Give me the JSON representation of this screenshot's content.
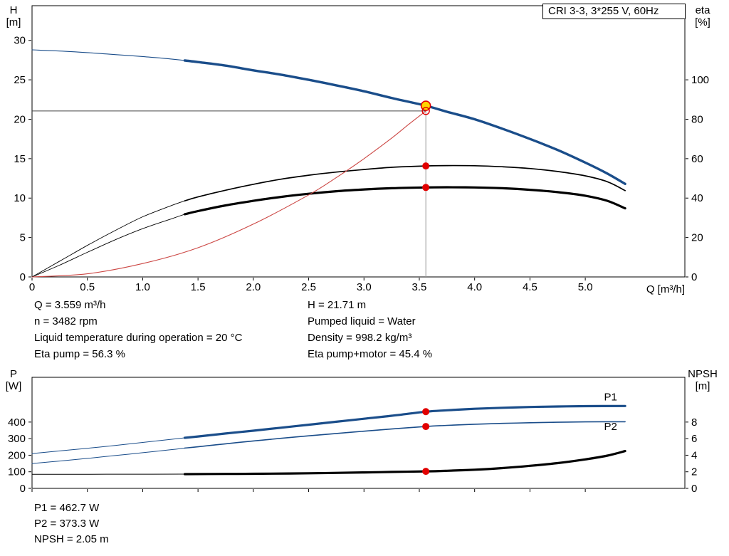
{
  "header_box": {
    "label": "CRI 3-3, 3*255 V, 60Hz"
  },
  "top_chart_titles": {
    "y_left_1": "H",
    "y_left_2": "[m]",
    "y_right_1": "eta",
    "y_right_2": "[%]",
    "x_title": "Q [m³/h]"
  },
  "bottom_chart_titles": {
    "y_left_1": "P",
    "y_left_2": "[W]",
    "y_right_1": "NPSH",
    "y_right_2": "[m]"
  },
  "results_top": {
    "col1": [
      "Q = 3.559 m³/h",
      "n = 3482 rpm",
      "Liquid temperature during operation = 20 °C",
      "Eta pump = 56.3 %"
    ],
    "col2": [
      "H = 21.71 m",
      "Pumped liquid = Water",
      "Density = 998.2 kg/m³",
      "Eta pump+motor = 45.4 %"
    ]
  },
  "results_bottom": [
    "P1 = 462.7 W",
    "P2 = 373.3 W",
    "NPSH = 2.05 m"
  ],
  "colors": {
    "curve_blue": "#1a4d8a",
    "curve_black": "#000000",
    "system_red": "#cc4744",
    "marker_red": "#e10000",
    "duty_yellow": "#ffd500"
  },
  "chart_data": [
    {
      "type": "line",
      "title": "CRI 3-3, 3*255 V, 60Hz",
      "xlabel": "Q [m³/h]",
      "ylabel_left": "H [m]",
      "ylabel_right": "eta [%]",
      "x_range": [
        0,
        5.9
      ],
      "y_left_range": [
        0,
        34.4
      ],
      "y_right_range": [
        0,
        137.6
      ],
      "grid": false,
      "x_ticks": [
        [
          "0",
          0
        ],
        [
          "0.5",
          0.5
        ],
        [
          "1.0",
          1
        ],
        [
          "1.5",
          1.5
        ],
        [
          "2.0",
          2
        ],
        [
          "2.5",
          2.5
        ],
        [
          "3.0",
          3
        ],
        [
          "3.5",
          3.5
        ],
        [
          "4.0",
          4
        ],
        [
          "4.5",
          4.5
        ],
        [
          "5.0",
          5
        ]
      ],
      "y_left_ticks": [
        [
          "0",
          0
        ],
        [
          "5",
          5
        ],
        [
          "10",
          10
        ],
        [
          "15",
          15
        ],
        [
          "20",
          20
        ],
        [
          "25",
          25
        ],
        [
          "30",
          30
        ]
      ],
      "y_right_ticks": [
        [
          "0",
          0
        ],
        [
          "20",
          20
        ],
        [
          "40",
          40
        ],
        [
          "60",
          60
        ],
        [
          "80",
          80
        ],
        [
          "100",
          100
        ]
      ],
      "ref_lines": [
        {
          "id": "head-reference-line",
          "type": "h",
          "v": 21.05,
          "from_q": 0,
          "to_q": 3.559,
          "color": "#444444",
          "w": 1
        },
        {
          "id": "flow-reference-line",
          "type": "v",
          "q": 3.559,
          "from": 0,
          "to": 21.71,
          "color": "#999999",
          "w": 1
        }
      ],
      "series": [
        {
          "id": "hq",
          "name": "H",
          "axis": "left",
          "color": "#1a4d8a",
          "width": 3.4,
          "thin_width": 1.1,
          "thin_until": 1.38,
          "points": [
            [
              0,
              28.8
            ],
            [
              0.25,
              28.65
            ],
            [
              0.5,
              28.45
            ],
            [
              0.75,
              28.2
            ],
            [
              1,
              27.95
            ],
            [
              1.25,
              27.65
            ],
            [
              1.38,
              27.45
            ],
            [
              1.5,
              27.25
            ],
            [
              1.75,
              26.8
            ],
            [
              2,
              26.2
            ],
            [
              2.25,
              25.65
            ],
            [
              2.5,
              25
            ],
            [
              2.75,
              24.3
            ],
            [
              3,
              23.55
            ],
            [
              3.25,
              22.7
            ],
            [
              3.559,
              21.71
            ],
            [
              3.75,
              20.95
            ],
            [
              4,
              20
            ],
            [
              4.25,
              18.8
            ],
            [
              4.5,
              17.5
            ],
            [
              4.75,
              16.1
            ],
            [
              5,
              14.5
            ],
            [
              5.2,
              13.1
            ],
            [
              5.36,
              11.8
            ]
          ]
        },
        {
          "id": "eta-pump",
          "name": "Eta pump",
          "axis": "right",
          "color": "#000000",
          "width": 1.7,
          "thin_width": 0.9,
          "thin_until": 1.38,
          "points": [
            [
              0,
              0
            ],
            [
              0.25,
              8
            ],
            [
              0.5,
              16
            ],
            [
              0.75,
              23.5
            ],
            [
              1,
              30.5
            ],
            [
              1.25,
              36
            ],
            [
              1.38,
              38.6
            ],
            [
              1.5,
              40.6
            ],
            [
              1.75,
              44
            ],
            [
              2,
              47
            ],
            [
              2.25,
              49.6
            ],
            [
              2.5,
              51.6
            ],
            [
              2.75,
              53.2
            ],
            [
              3,
              54.5
            ],
            [
              3.25,
              55.6
            ],
            [
              3.559,
              56.3
            ],
            [
              3.75,
              56.5
            ],
            [
              4,
              56.4
            ],
            [
              4.25,
              55.9
            ],
            [
              4.5,
              55
            ],
            [
              4.75,
              53.5
            ],
            [
              5,
              51.3
            ],
            [
              5.2,
              48.3
            ],
            [
              5.36,
              43.8
            ]
          ]
        },
        {
          "id": "eta-pump-motor",
          "name": "Eta pump+motor",
          "axis": "right",
          "color": "#000000",
          "width": 3.2,
          "thin_width": 0.9,
          "thin_until": 1.38,
          "points": [
            [
              0,
              0
            ],
            [
              0.25,
              6
            ],
            [
              0.5,
              12.5
            ],
            [
              0.75,
              18.8
            ],
            [
              1,
              24.5
            ],
            [
              1.25,
              29.3
            ],
            [
              1.38,
              31.8
            ],
            [
              1.5,
              33.4
            ],
            [
              1.75,
              36.3
            ],
            [
              2,
              38.6
            ],
            [
              2.25,
              40.6
            ],
            [
              2.5,
              42.2
            ],
            [
              2.75,
              43.5
            ],
            [
              3,
              44.4
            ],
            [
              3.25,
              45
            ],
            [
              3.559,
              45.4
            ],
            [
              3.75,
              45.5
            ],
            [
              4,
              45.4
            ],
            [
              4.25,
              45
            ],
            [
              4.5,
              44.2
            ],
            [
              4.75,
              43
            ],
            [
              5,
              41.2
            ],
            [
              5.2,
              38.6
            ],
            [
              5.36,
              34.8
            ]
          ]
        },
        {
          "id": "system-curve",
          "name": "System curve",
          "axis": "left",
          "color": "#cc4744",
          "width": 1.1,
          "points": [
            [
              0,
              0
            ],
            [
              0.5,
              0.4
            ],
            [
              1,
              1.7
            ],
            [
              1.5,
              3.7
            ],
            [
              2,
              6.7
            ],
            [
              2.5,
              10.4
            ],
            [
              2.75,
              12.6
            ],
            [
              3,
              15
            ],
            [
              3.25,
              17.6
            ],
            [
              3.4,
              19.3
            ],
            [
              3.559,
              21.05
            ]
          ]
        }
      ],
      "markers": [
        {
          "id": "duty-point",
          "style": "duty",
          "q": 3.559,
          "v": 21.71,
          "axis": "left",
          "fill": "#ffd500",
          "color": "#e10000",
          "r": 6.5
        },
        {
          "id": "requested-point",
          "style": "ring",
          "q": 3.559,
          "v": 21.05,
          "axis": "left",
          "color": "#e10000",
          "r": 5
        },
        {
          "id": "eta-pump-point",
          "style": "dot",
          "q": 3.559,
          "v": 56.3,
          "axis": "right",
          "color": "#e10000",
          "r": 5
        },
        {
          "id": "eta-pump-motor-point",
          "style": "dot",
          "q": 3.559,
          "v": 45.4,
          "axis": "right",
          "color": "#e10000",
          "r": 5
        }
      ]
    },
    {
      "type": "line",
      "ylabel_left": "P [W]",
      "ylabel_right": "NPSH [m]",
      "x_range": [
        0,
        5.9
      ],
      "y_left_range": [
        0,
        670
      ],
      "y_right_range": [
        0,
        13.4
      ],
      "grid": false,
      "x_ticks": [
        [
          "",
          0
        ],
        [
          "",
          0.5
        ],
        [
          "",
          1
        ],
        [
          "",
          1.5
        ],
        [
          "",
          2
        ],
        [
          "",
          2.5
        ],
        [
          "",
          3
        ],
        [
          "",
          3.5
        ],
        [
          "",
          4
        ],
        [
          "",
          4.5
        ],
        [
          "",
          5
        ]
      ],
      "y_left_ticks": [
        [
          "0",
          0
        ],
        [
          "100",
          100
        ],
        [
          "200",
          200
        ],
        [
          "300",
          300
        ],
        [
          "400",
          400
        ]
      ],
      "y_right_ticks": [
        [
          "0",
          0
        ],
        [
          "2",
          2
        ],
        [
          "4",
          4
        ],
        [
          "6",
          6
        ],
        [
          "8",
          8
        ]
      ],
      "series": [
        {
          "id": "p1",
          "name": "P1",
          "label": "P1",
          "label_at": [
            5.17,
            530
          ],
          "axis": "left",
          "color": "#1a4d8a",
          "width": 3.2,
          "thin_width": 1,
          "thin_until": 1.38,
          "points": [
            [
              0,
              210
            ],
            [
              0.25,
              226
            ],
            [
              0.5,
              242
            ],
            [
              0.75,
              259
            ],
            [
              1,
              277
            ],
            [
              1.25,
              295
            ],
            [
              1.38,
              305
            ],
            [
              1.5,
              313
            ],
            [
              1.75,
              331
            ],
            [
              2,
              348
            ],
            [
              2.25,
              366
            ],
            [
              2.5,
              384
            ],
            [
              2.75,
              402
            ],
            [
              3,
              420
            ],
            [
              3.25,
              438
            ],
            [
              3.559,
              462.7
            ],
            [
              3.75,
              471
            ],
            [
              4,
              480
            ],
            [
              4.25,
              486
            ],
            [
              4.5,
              491
            ],
            [
              4.75,
              494
            ],
            [
              5,
              496
            ],
            [
              5.36,
              497
            ]
          ]
        },
        {
          "id": "p2",
          "name": "P2",
          "label": "P2",
          "label_at": [
            5.17,
            352
          ],
          "axis": "left",
          "color": "#1a4d8a",
          "width": 1.6,
          "thin_width": 1,
          "thin_until": 1.38,
          "points": [
            [
              0,
              150
            ],
            [
              0.25,
              165
            ],
            [
              0.5,
              181
            ],
            [
              0.75,
              198
            ],
            [
              1,
              215
            ],
            [
              1.25,
              233
            ],
            [
              1.38,
              243
            ],
            [
              1.5,
              251
            ],
            [
              1.75,
              269
            ],
            [
              2,
              286
            ],
            [
              2.25,
              302
            ],
            [
              2.5,
              317
            ],
            [
              2.75,
              331
            ],
            [
              3,
              345
            ],
            [
              3.25,
              358
            ],
            [
              3.559,
              373.3
            ],
            [
              3.75,
              380
            ],
            [
              4,
              387
            ],
            [
              4.25,
              392
            ],
            [
              4.5,
              396
            ],
            [
              4.75,
              399
            ],
            [
              5,
              401
            ],
            [
              5.36,
              402
            ]
          ]
        },
        {
          "id": "npsh",
          "name": "NPSH",
          "axis": "right",
          "color": "#000000",
          "width": 3.2,
          "thin_width": 1,
          "thin_until": 1.38,
          "points": [
            [
              0,
              1.7
            ],
            [
              0.5,
              1.7
            ],
            [
              1,
              1.71
            ],
            [
              1.38,
              1.72
            ],
            [
              1.75,
              1.74
            ],
            [
              2,
              1.76
            ],
            [
              2.5,
              1.82
            ],
            [
              3,
              1.92
            ],
            [
              3.25,
              1.98
            ],
            [
              3.559,
              2.05
            ],
            [
              3.75,
              2.12
            ],
            [
              4,
              2.25
            ],
            [
              4.25,
              2.45
            ],
            [
              4.5,
              2.72
            ],
            [
              4.75,
              3.05
            ],
            [
              5,
              3.5
            ],
            [
              5.2,
              3.95
            ],
            [
              5.36,
              4.5
            ]
          ]
        }
      ],
      "markers": [
        {
          "id": "p1-point",
          "style": "dot",
          "q": 3.559,
          "v": 462.7,
          "axis": "left",
          "color": "#e10000",
          "r": 5
        },
        {
          "id": "p2-point",
          "style": "dot",
          "q": 3.559,
          "v": 373.3,
          "axis": "left",
          "color": "#e10000",
          "r": 5
        },
        {
          "id": "npsh-point",
          "style": "dot",
          "q": 3.559,
          "v": 2.05,
          "axis": "right",
          "color": "#e10000",
          "r": 5
        }
      ]
    }
  ]
}
